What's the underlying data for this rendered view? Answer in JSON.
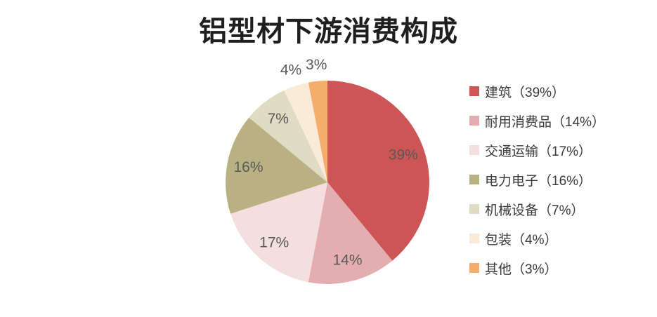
{
  "title": "铝型材下游消费构成",
  "chart_data": {
    "type": "pie",
    "title": "铝型材下游消费构成",
    "start_angle_deg": 0,
    "direction": "clockwise",
    "legend_position": "right",
    "title_color": "#1F1F1F",
    "label_color": "#595959",
    "legend_text_color": "#3A3A3A",
    "background_color": "#FFFFFF",
    "slices": [
      {
        "label": "建筑",
        "value": 39,
        "pct_label": "39%",
        "legend_label": "建筑（39%）",
        "color": "#CD5555",
        "label_placement": "inside"
      },
      {
        "label": "耐用消费品",
        "value": 14,
        "pct_label": "14%",
        "legend_label": "耐用消费品（14%）",
        "color": "#E4ADB1",
        "label_placement": "inside"
      },
      {
        "label": "交通运输",
        "value": 17,
        "pct_label": "17%",
        "legend_label": "交通运输（17%）",
        "color": "#F3DFDE",
        "label_placement": "inside"
      },
      {
        "label": "电力电子",
        "value": 16,
        "pct_label": "16%",
        "legend_label": "电力电子（16%）",
        "color": "#BAB183",
        "label_placement": "inside"
      },
      {
        "label": "机械设备",
        "value": 7,
        "pct_label": "7%",
        "legend_label": "机械设备（7%）",
        "color": "#DFDCC3",
        "label_placement": "inside"
      },
      {
        "label": "包装",
        "value": 4,
        "pct_label": "4%",
        "legend_label": "包装（4%）",
        "color": "#FAEAD8",
        "label_placement": "outside"
      },
      {
        "label": "其他",
        "value": 3,
        "pct_label": "3%",
        "legend_label": "其他（3%）",
        "color": "#F5AD6C",
        "label_placement": "outside"
      }
    ]
  }
}
